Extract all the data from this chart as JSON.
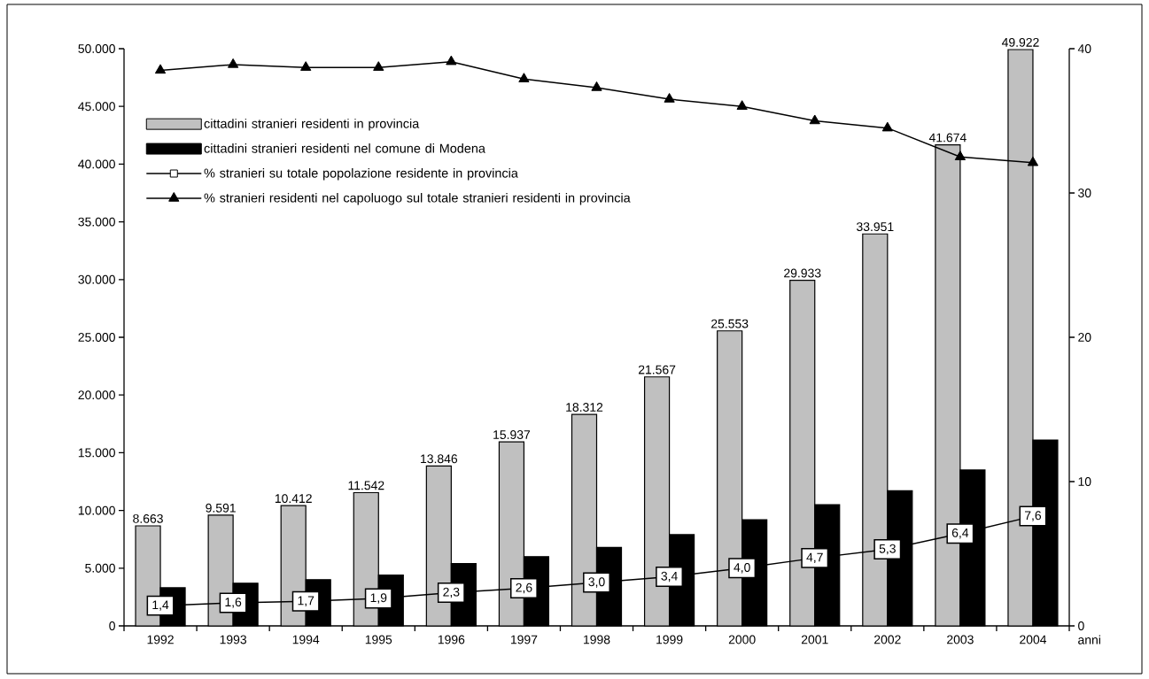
{
  "chart_data": {
    "type": "bar",
    "xlabel": "anni",
    "categories": [
      "1992",
      "1993",
      "1994",
      "1995",
      "1996",
      "1997",
      "1998",
      "1999",
      "2000",
      "2001",
      "2002",
      "2003",
      "2004"
    ],
    "ylim": [
      0,
      50000
    ],
    "yticks": [
      {
        "value": 0,
        "label": "0"
      },
      {
        "value": 5000,
        "label": "5.000"
      },
      {
        "value": 10000,
        "label": "10.000"
      },
      {
        "value": 15000,
        "label": "15.000"
      },
      {
        "value": 20000,
        "label": "20.000"
      },
      {
        "value": 25000,
        "label": "25.000"
      },
      {
        "value": 30000,
        "label": "30.000"
      },
      {
        "value": 35000,
        "label": "35.000"
      },
      {
        "value": 40000,
        "label": "40.000"
      },
      {
        "value": 45000,
        "label": "45.000"
      },
      {
        "value": 50000,
        "label": "50.000"
      }
    ],
    "y2lim": [
      0,
      40
    ],
    "y2ticks": [
      0,
      10,
      20,
      30,
      40
    ],
    "legend": "top left",
    "series": [
      {
        "name": "cittadini stranieri residenti in provincia",
        "color": "#c0c0c0",
        "values": [
          8663,
          9591,
          10412,
          11542,
          13846,
          15937,
          18312,
          21567,
          25553,
          29933,
          33951,
          41674,
          49922
        ],
        "value_labels": [
          "8.663",
          "9.591",
          "10.412",
          "11.542",
          "13.846",
          "15.937",
          "18.312",
          "21.567",
          "25.553",
          "29.933",
          "33.951",
          "41.674",
          "49.922"
        ]
      },
      {
        "name": "cittadini stranieri residenti nel comune di Modena",
        "color": "#000000",
        "values": [
          3300,
          3700,
          4000,
          4400,
          5400,
          6000,
          6800,
          7900,
          9200,
          10500,
          11700,
          13500,
          16100
        ]
      },
      {
        "name": "% stranieri su totale popolazione residente in provincia",
        "type": "line",
        "axis": "y2",
        "color": "#000000",
        "marker": "square",
        "values": [
          1.4,
          1.6,
          1.7,
          1.9,
          2.3,
          2.6,
          3.0,
          3.4,
          4.0,
          4.7,
          5.3,
          6.4,
          7.6
        ],
        "value_labels": [
          "1,4",
          "1,6",
          "1,7",
          "1,9",
          "2,3",
          "2,6",
          "3,0",
          "3,4",
          "4,0",
          "4,7",
          "5,3",
          "6,4",
          "7,6"
        ]
      },
      {
        "name": "% stranieri residenti nel capoluogo sul totale stranieri residenti in provincia",
        "type": "line",
        "axis": "y2",
        "color": "#000000",
        "marker": "triangle",
        "values": [
          38.5,
          38.9,
          38.7,
          38.7,
          39.1,
          37.9,
          37.3,
          36.5,
          36.0,
          35.0,
          34.5,
          32.5,
          32.1
        ]
      }
    ]
  }
}
